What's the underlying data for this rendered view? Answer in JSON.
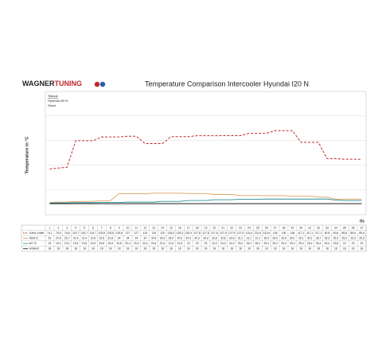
{
  "header": {
    "brand_a": "WAGNER",
    "brand_b": "TUNING"
  },
  "info": [
    "Testcar",
    "Hyundai i20 N",
    "Stock"
  ],
  "chart_data": {
    "type": "line",
    "title": "Temperature Comparison Intercooler Hyundai I20 N",
    "y_label": "Temperature in °C",
    "x_label": "t/s",
    "categories": [
      1,
      2,
      3,
      4,
      5,
      6,
      7,
      8,
      9,
      10,
      11,
      12,
      13,
      14,
      15,
      16,
      17,
      18,
      19,
      20,
      21,
      22,
      23,
      24,
      25,
      26,
      27,
      28,
      29,
      30,
      31,
      32,
      33,
      34,
      35,
      36,
      37
    ],
    "ylim": [
      0,
      180
    ],
    "yticks": [
      0,
      40,
      80,
      120,
      160
    ],
    "grid": true,
    "series": [
      {
        "name": "Turbo Outlet",
        "color": "#c0282d",
        "dash": true,
        "values": [
          74.1,
          75.5,
          76.8,
          119.7,
          119.7,
          119.7,
          125.8,
          125.8,
          125.8,
          127,
          127,
          115,
          115,
          115,
          126.3,
          126.3,
          126.3,
          127.8,
          127.8,
          127.8,
          127.9,
          127.9,
          127.9,
          131.6,
          131.6,
          131.6,
          136,
          136,
          136,
          117.1,
          117.1,
          117.1,
          90.8,
          90.8,
          89.8,
          89.8,
          89.6
        ],
        "value_labels": [
          "74,1",
          "75,5",
          "76,8",
          "119,7",
          "119,7",
          "119,7",
          "125,8",
          "125,8",
          "125,8",
          "127",
          "127",
          "115",
          "115",
          "115",
          "126,3",
          "126,3",
          "126,3",
          "127,8",
          "127,8",
          "127,8",
          "127,9",
          "127,9",
          "127,9",
          "131,6",
          "131,6",
          "131,6",
          "136",
          "136",
          "136",
          "117,1",
          "117,1",
          "117,1",
          "90,8",
          "90,8",
          "89,8",
          "89,8",
          "89,6"
        ]
      },
      {
        "name": "OEM IC",
        "color": "#e0a060",
        "dash": false,
        "values": [
          20,
          20.5,
          20.7,
          21.4,
          21.4,
          21.8,
          22.8,
          22.8,
          34,
          34,
          34,
          34,
          34.9,
          34.9,
          34.9,
          34.9,
          34.3,
          34.3,
          34.3,
          32.8,
          32.8,
          32.8,
          31.1,
          31.1,
          31.1,
          30.9,
          30.9,
          30.9,
          30.1,
          30.1,
          30.1,
          28.7,
          28.3,
          25.3,
          25.3,
          25.3,
          25.3
        ],
        "value_labels": [
          "20",
          "20,5",
          "20,7",
          "21,4",
          "21,4",
          "21,8",
          "22,8",
          "22,8",
          "34",
          "34",
          "34",
          "34",
          "34,9",
          "34,9",
          "34,9",
          "34,9",
          "34,3",
          "34,3",
          "34,3",
          "32,8",
          "32,8",
          "32,8",
          "31,1",
          "31,1",
          "31,1",
          "30,9",
          "30,9",
          "30,9",
          "30,1",
          "30,1",
          "30,1",
          "28,7",
          "28,3",
          "25,3",
          "25,3",
          "25,3",
          "25,3"
        ]
      },
      {
        "name": "WT IC",
        "color": "#2a8f9a",
        "dash": false,
        "values": [
          19,
          19.2,
          19.2,
          19.6,
          19.6,
          19.6,
          19.8,
          19.8,
          19.8,
          20.4,
          20.4,
          20.4,
          20.4,
          21.6,
          21.6,
          21.6,
          23,
          23,
          23,
          24.3,
          24.3,
          24.3,
          25.2,
          25.2,
          25.2,
          25.4,
          25.4,
          25.4,
          25.4,
          25.4,
          25.4,
          25.4,
          25.4,
          23.8,
          23,
          23,
          23
        ],
        "value_labels": [
          "19",
          "19,2",
          "19,2",
          "19,6",
          "19,6",
          "19,6",
          "19,8",
          "19,8",
          "19,8",
          "20,4",
          "20,4",
          "20,4",
          "20,4",
          "21,6",
          "21,6",
          "21,6",
          "23",
          "23",
          "23",
          "24,3",
          "24,3",
          "24,3",
          "25,2",
          "25,2",
          "25,2",
          "25,4",
          "25,4",
          "25,4",
          "25,4",
          "25,4",
          "25,4",
          "25,4",
          "25,4",
          "23,8",
          "23",
          "23",
          "23"
        ]
      },
      {
        "name": "Ambient",
        "color": "#222222",
        "dash": false,
        "values": [
          18,
          18,
          18,
          18,
          18,
          18,
          18,
          18,
          18,
          18,
          18,
          18,
          18,
          18,
          18,
          18,
          18,
          18,
          18,
          18,
          18,
          18,
          18,
          18,
          18,
          18,
          18,
          18,
          18,
          18,
          18,
          18,
          18,
          18,
          18,
          18,
          18
        ]
      }
    ]
  }
}
